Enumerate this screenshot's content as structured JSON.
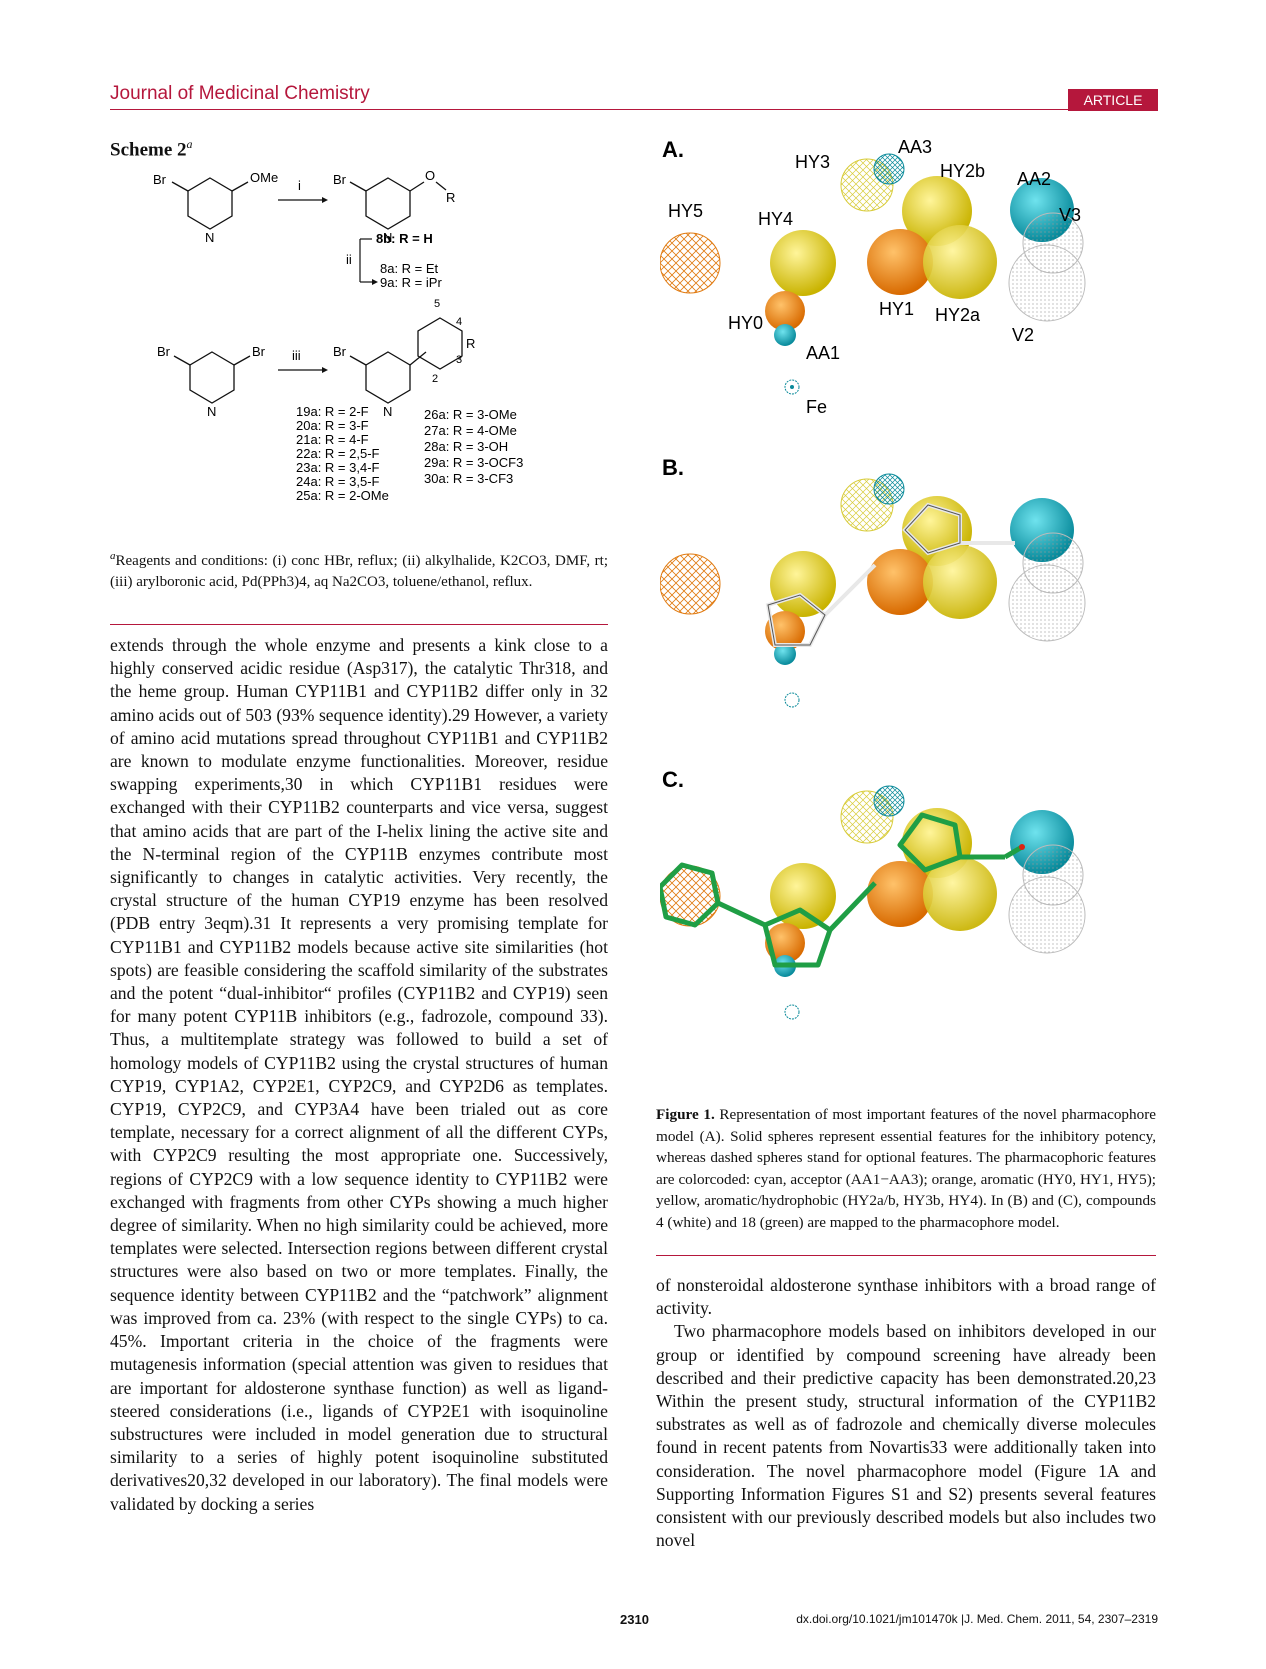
{
  "header": {
    "journal": "Journal of Medicinal Chemistry",
    "badge": "ARTICLE"
  },
  "scheme": {
    "title": "Scheme 2",
    "title_sup": "a",
    "labels": {
      "br": "Br",
      "ome": "OMe",
      "n": "N",
      "o": "O",
      "r": "R",
      "step_i": "i",
      "step_ii": "ii",
      "step_iii": "iii",
      "p8b": "8b: R = H",
      "p8a": "8a: R = Et",
      "p9a": "9a: R = iPr",
      "pos5": "5",
      "pos4": "4",
      "pos3": "3",
      "pos2": "2"
    },
    "compounds_left": [
      "19a: R = 2-F",
      "20a: R = 3-F",
      "21a: R = 4-F",
      "22a: R = 2,5-F",
      "23a: R = 3,4-F",
      "24a: R = 3,5-F",
      "25a: R = 2-OMe"
    ],
    "compounds_right": [
      "26a: R = 3-OMe",
      "27a: R = 4-OMe",
      "28a: R = 3-OH",
      "29a: R = 3-OCF3",
      "30a: R = 3-CF3"
    ],
    "footnote_sup": "a",
    "footnote": "Reagents and conditions: (i) conc HBr, reflux; (ii) alkylhalide, K2CO3, DMF, rt; (iii) arylboronic acid, Pd(PPh3)4, aq Na2CO3, toluene/ethanol, reflux."
  },
  "left_column": "extends through the whole enzyme and presents a kink close to a highly conserved acidic residue (Asp317), the catalytic Thr318, and the heme group. Human CYP11B1 and CYP11B2 differ only in 32 amino acids out of 503 (93% sequence identity).29 However, a variety of amino acid mutations spread throughout CYP11B1 and CYP11B2 are known to modulate enzyme functionalities. Moreover, residue swapping experiments,30 in which CYP11B1 residues were exchanged with their CYP11B2 counterparts and vice versa, suggest that amino acids that are part of the I-helix lining the active site and the N-terminal region of the CYP11B enzymes contribute most significantly to changes in catalytic activities. Very recently, the crystal structure of the human CYP19 enzyme has been resolved (PDB entry 3eqm).31 It represents a very promising template for CYP11B1 and CYP11B2 models because active site similarities (hot spots) are feasible considering the scaffold similarity of the substrates and the potent “dual-inhibitor“ profiles (CYP11B2 and CYP19) seen for many potent CYP11B inhibitors (e.g., fadrozole, compound 33). Thus, a multitemplate strategy was followed to build a set of homology models of CYP11B2 using the crystal structures of human CYP19, CYP1A2, CYP2E1, CYP2C9, and CYP2D6 as templates. CYP19, CYP2C9, and CYP3A4 have been trialed out as core template, necessary for a correct alignment of all the different CYPs, with CYP2C9 resulting the most appropriate one. Successively, regions of CYP2C9 with a low sequence identity to CYP11B2 were exchanged with fragments from other CYPs showing a much higher degree of similarity. When no high similarity could be achieved, more templates were selected. Intersection regions between different crystal structures were also based on two or more templates. Finally, the sequence identity between CYP11B2 and the “patchwork” alignment was improved from ca. 23% (with respect to the single CYPs) to ca. 45%. Important criteria in the choice of the fragments were mutagenesis information (special attention was given to residues that are important for aldosterone synthase function) as well as ligand-steered considerations (i.e., ligands of CYP2E1 with isoquinoline substructures were included in model generation due to structural similarity to a series of highly potent isoquinoline substituted derivatives20,32 developed in our laboratory). The final models were validated by docking a series",
  "figure": {
    "panel_a": "A.",
    "panel_b": "B.",
    "panel_c": "C.",
    "features": {
      "hy5": "HY5",
      "hy4": "HY4",
      "hy3": "HY3",
      "aa3": "AA3",
      "hy2b": "HY2b",
      "aa2": "AA2",
      "v3": "V3",
      "hy0": "HY0",
      "hy1": "HY1",
      "hy2a": "HY2a",
      "v2": "V2",
      "aa1": "AA1",
      "fe": "Fe"
    },
    "colors": {
      "cyan": "#12a3b4",
      "orange": "#f08a16",
      "yellow": "#e8d418",
      "green": "#1f9e45",
      "grey": "#a0a0a0"
    }
  },
  "caption": {
    "label": "Figure 1.",
    "text": "Representation of most important features of the novel pharmacophore model (A). Solid spheres represent essential features for the inhibitory potency, whereas dashed spheres stand for optional features. The pharmacophoric features are colorcoded: cyan, acceptor (AA1−AA3); orange, aromatic (HY0, HY1, HY5); yellow, aromatic/hydrophobic (HY2a/b, HY3b, HY4). In (B) and (C), compounds 4 (white) and 18 (green) are mapped to the pharmacophore model."
  },
  "right_column": {
    "p1": "of nonsteroidal aldosterone synthase inhibitors with a broad range of activity.",
    "p2": "Two pharmacophore models based on inhibitors developed in our group or identified by compound screening have already been described and their predictive capacity has been demonstrated.20,23 Within the present study, structural information of the CYP11B2 substrates as well as of fadrozole and chemically diverse molecules found in recent patents from Novartis33 were additionally taken into consideration. The novel pharmacophore model (Figure 1A and Supporting Information Figures S1 and S2) presents several features consistent with our previously described models but also includes two novel"
  },
  "footer": {
    "page": "2310",
    "doi": "dx.doi.org/10.1021/jm101470k |J. Med. Chem. 2011, 54, 2307–2319"
  }
}
